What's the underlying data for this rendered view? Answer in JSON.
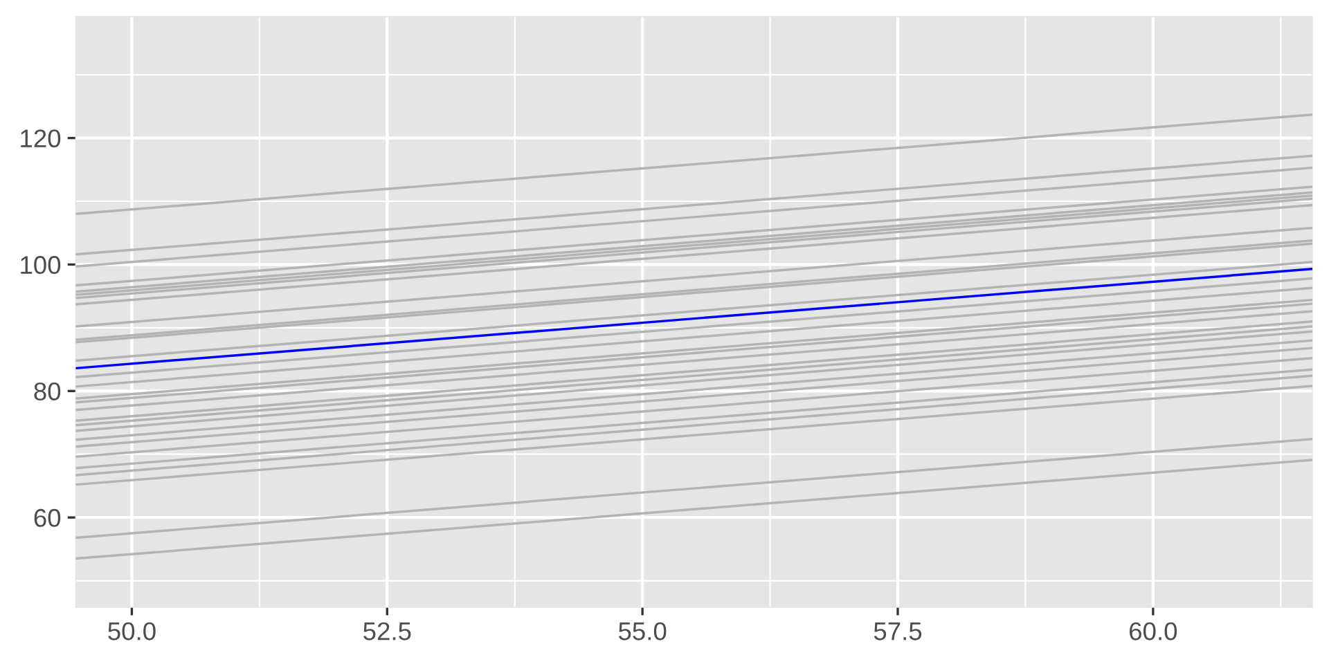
{
  "chart_data": {
    "type": "line",
    "xlim": [
      49.45,
      61.56
    ],
    "ylim": [
      45.8,
      139.2
    ],
    "xticks": [
      {
        "value": 50,
        "label": "50.0"
      },
      52.5,
      {
        "value": 55,
        "label": "55.0"
      },
      57.5,
      {
        "value": 60,
        "label": "60.0"
      }
    ],
    "yticks": [
      60,
      80,
      100,
      120
    ],
    "grid": true,
    "x": [
      49.45,
      61.56
    ],
    "series": [
      {
        "color": "#b3b3b3",
        "values": [
          108.0,
          123.7
        ]
      },
      {
        "color": "#b3b3b3",
        "values": [
          101.6,
          117.2
        ]
      },
      {
        "color": "#b3b3b3",
        "values": [
          99.7,
          115.3
        ]
      },
      {
        "color": "#b3b3b3",
        "values": [
          96.7,
          112.3
        ]
      },
      {
        "color": "#b3b3b3",
        "values": [
          95.7,
          111.4
        ]
      },
      {
        "color": "#b3b3b3",
        "values": [
          95.2,
          110.9
        ]
      },
      {
        "color": "#b3b3b3",
        "values": [
          94.7,
          110.4
        ]
      },
      {
        "color": "#b3b3b3",
        "values": [
          93.7,
          109.4
        ]
      },
      {
        "color": "#b3b3b3",
        "values": [
          90.2,
          105.8
        ]
      },
      {
        "color": "#b3b3b3",
        "values": [
          88.1,
          103.8
        ]
      },
      {
        "color": "#b3b3b3",
        "values": [
          87.7,
          103.3
        ]
      },
      {
        "color": "#b3b3b3",
        "values": [
          84.8,
          100.4
        ]
      },
      {
        "color": "#b3b3b3",
        "values": [
          82.2,
          97.8
        ]
      },
      {
        "color": "#b3b3b3",
        "values": [
          80.7,
          96.3
        ]
      },
      {
        "color": "#b3b3b3",
        "values": [
          78.8,
          94.4
        ]
      },
      {
        "color": "#b3b3b3",
        "values": [
          78.2,
          93.8
        ]
      },
      {
        "color": "#b3b3b3",
        "values": [
          77.0,
          92.6
        ]
      },
      {
        "color": "#b3b3b3",
        "values": [
          75.3,
          91.0
        ]
      },
      {
        "color": "#b3b3b3",
        "values": [
          74.6,
          90.2
        ]
      },
      {
        "color": "#b3b3b3",
        "values": [
          73.7,
          89.4
        ]
      },
      {
        "color": "#b3b3b3",
        "values": [
          72.3,
          88.0
        ]
      },
      {
        "color": "#b3b3b3",
        "values": [
          71.2,
          86.8
        ]
      },
      {
        "color": "#b3b3b3",
        "values": [
          69.6,
          85.2
        ]
      },
      {
        "color": "#b3b3b3",
        "values": [
          67.8,
          83.4
        ]
      },
      {
        "color": "#b3b3b3",
        "values": [
          66.7,
          82.4
        ]
      },
      {
        "color": "#b3b3b3",
        "values": [
          65.2,
          80.8
        ]
      },
      {
        "color": "#b3b3b3",
        "values": [
          56.8,
          72.4
        ]
      },
      {
        "color": "#b3b3b3",
        "values": [
          53.5,
          69.1
        ]
      },
      {
        "color": "#0000ff",
        "values": [
          83.6,
          99.3
        ]
      }
    ]
  }
}
